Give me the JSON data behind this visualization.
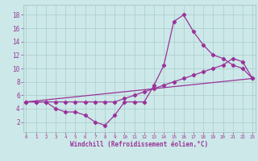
{
  "line1_x": [
    0,
    1,
    2,
    3,
    4,
    5,
    6,
    7,
    8,
    9,
    10,
    11,
    12,
    13,
    14,
    15,
    16,
    17,
    18,
    19,
    20,
    21,
    22,
    23
  ],
  "line1_y": [
    5.0,
    5.0,
    5.0,
    4.0,
    3.5,
    3.5,
    3.0,
    2.0,
    1.5,
    3.0,
    5.0,
    5.0,
    5.0,
    7.5,
    10.5,
    17.0,
    18.0,
    15.5,
    13.5,
    12.0,
    11.5,
    10.5,
    10.0,
    8.5
  ],
  "line2_x": [
    0,
    1,
    2,
    3,
    4,
    5,
    6,
    7,
    8,
    9,
    10,
    11,
    12,
    13,
    14,
    15,
    16,
    17,
    18,
    19,
    20,
    21,
    22,
    23
  ],
  "line2_y": [
    5.0,
    5.0,
    5.0,
    5.0,
    5.0,
    5.0,
    5.0,
    5.0,
    5.0,
    5.0,
    5.5,
    6.0,
    6.5,
    7.0,
    7.5,
    8.0,
    8.5,
    9.0,
    9.5,
    10.0,
    10.5,
    11.5,
    11.0,
    8.5
  ],
  "line3_x": [
    0,
    23
  ],
  "line3_y": [
    5.0,
    8.5
  ],
  "line_color": "#993399",
  "bg_color": "#cce8e8",
  "grid_color": "#aacccc",
  "xlabel": "Windchill (Refroidissement éolien,°C)",
  "xlim": [
    -0.3,
    23.3
  ],
  "ylim": [
    0.5,
    19.5
  ],
  "xticks": [
    0,
    1,
    2,
    3,
    4,
    5,
    6,
    7,
    8,
    9,
    10,
    11,
    12,
    13,
    14,
    15,
    16,
    17,
    18,
    19,
    20,
    21,
    22,
    23
  ],
  "yticks": [
    2,
    4,
    6,
    8,
    10,
    12,
    14,
    16,
    18
  ],
  "marker": "D",
  "markersize": 2.2,
  "linewidth": 0.9,
  "xlabel_fontsize": 5.5,
  "tick_fontsize_x": 4.2,
  "tick_fontsize_y": 5.5
}
